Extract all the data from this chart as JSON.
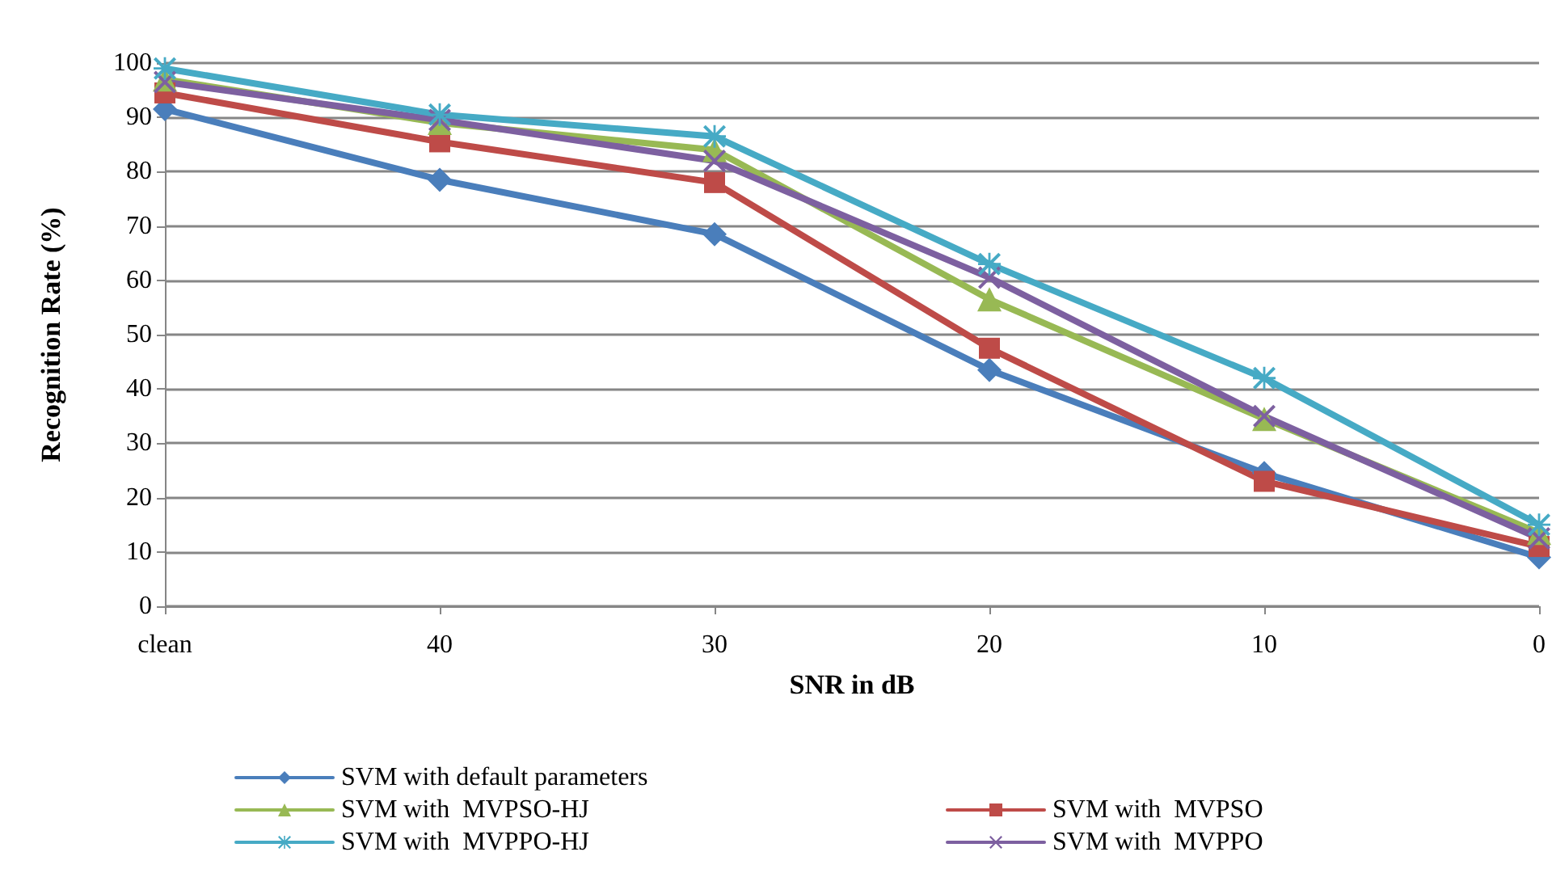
{
  "chart_data": {
    "type": "line",
    "xlabel": "SNR in dB",
    "ylabel": "Recognition Rate (%)",
    "categories": [
      "clean",
      "40",
      "30",
      "20",
      "10",
      "0"
    ],
    "ylim": [
      0,
      100
    ],
    "yticks": [
      0,
      10,
      20,
      30,
      40,
      50,
      60,
      70,
      80,
      90,
      100
    ],
    "grid": "y",
    "legend": "bottom",
    "line_style": "solid",
    "series": [
      {
        "name": "SVM with default parameters",
        "color": "#4a7ebb",
        "marker": "diamond",
        "values": [
          91.5,
          78.5,
          68.5,
          43.5,
          24.5,
          9
        ]
      },
      {
        "name": "SVM with  MVPSO",
        "color": "#be4b48",
        "marker": "square",
        "values": [
          94.5,
          85.5,
          78,
          47.5,
          23,
          11
        ]
      },
      {
        "name": "SVM with  MVPSO-HJ",
        "color": "#98b954",
        "marker": "triangle",
        "values": [
          97,
          89,
          84,
          56.5,
          34.5,
          13.5
        ]
      },
      {
        "name": "SVM with  MVPPO",
        "color": "#7d60a0",
        "marker": "cross",
        "values": [
          96.5,
          89.5,
          82,
          60.5,
          35,
          12.5
        ]
      },
      {
        "name": "SVM with  MVPPO-HJ",
        "color": "#46aac5",
        "marker": "star",
        "values": [
          99,
          90.5,
          86.5,
          63,
          42,
          15
        ]
      }
    ]
  }
}
